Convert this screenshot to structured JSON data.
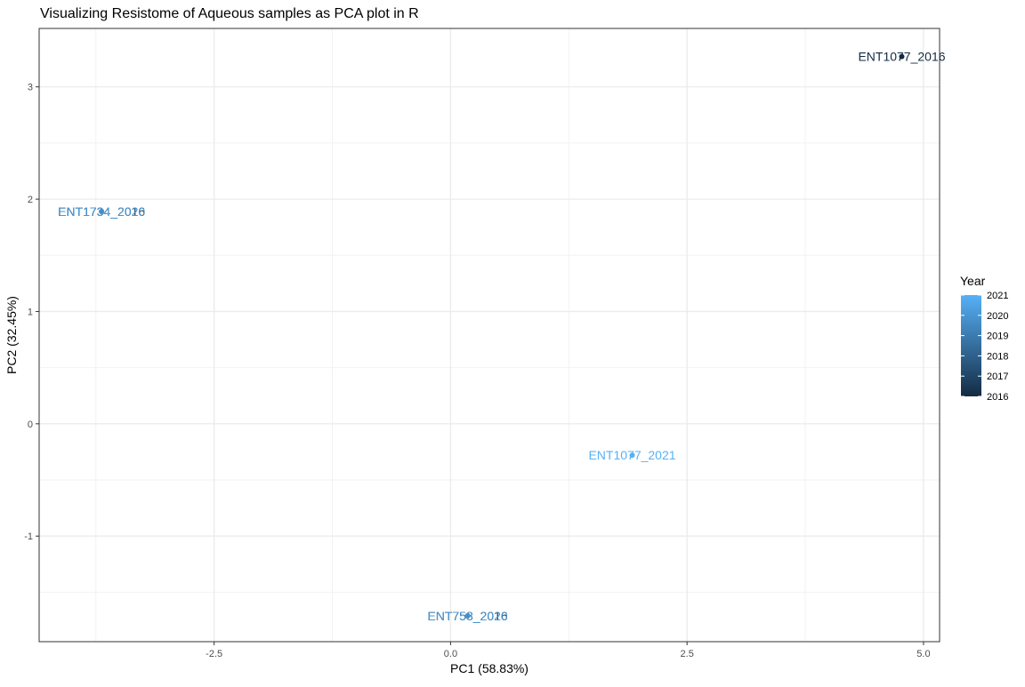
{
  "chart_data": {
    "type": "scatter",
    "title": "Visualizing Resistome of Aqueous samples as PCA plot in R",
    "xlabel": "PC1 (58.83%)",
    "ylabel": "PC2 (32.45%)",
    "xlim": [
      -4.35,
      5.17
    ],
    "ylim": [
      -1.94,
      3.52
    ],
    "x_ticks": [
      -2.5,
      0.0,
      2.5,
      5.0
    ],
    "x_tick_labels": [
      "-2.5",
      "0.0",
      "2.5",
      "5.0"
    ],
    "y_ticks": [
      -1,
      0,
      1,
      2,
      3
    ],
    "y_tick_labels": [
      "-1",
      "0",
      "1",
      "2",
      "3"
    ],
    "grid": true,
    "theme": "bw",
    "color_scale": {
      "variable": "Year",
      "low_color": "#132B43",
      "high_color": "#56B1F7",
      "min": 2016,
      "max": 2021
    },
    "legend": {
      "title": "Year",
      "position": "right",
      "labels": [
        "2021",
        "2020",
        "2019",
        "2018",
        "2017",
        "2016"
      ],
      "values": [
        2021,
        2020,
        2019,
        2018,
        2017,
        2016
      ]
    },
    "points": [
      {
        "label": "ENT1077_2016",
        "x": 4.77,
        "y": 3.27,
        "year": 2016
      },
      {
        "label": "ENT1077_2021",
        "x": 1.92,
        "y": -0.28,
        "year": 2021
      },
      {
        "label": "ENT1734_2016",
        "x": -3.69,
        "y": 1.89,
        "year": 2016
      },
      {
        "label": "ENT1734_2020",
        "x": -3.69,
        "y": 1.89,
        "year": 2020
      },
      {
        "label": "ENT758_2016",
        "x": 0.18,
        "y": -1.71,
        "year": 2016
      },
      {
        "label": "ENT758_2020",
        "x": 0.18,
        "y": -1.71,
        "year": 2020
      }
    ]
  }
}
